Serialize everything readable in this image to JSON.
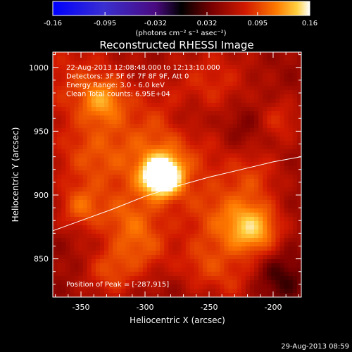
{
  "colorbar": {
    "ticks": [
      -0.16,
      -0.095,
      -0.032,
      0.032,
      0.095,
      0.16
    ],
    "tick_labels": [
      "-0.16",
      "-0.095",
      "-0.032",
      "0.032",
      "0.095",
      "0.16"
    ],
    "units_label": "(photons cm⁻² s⁻¹ asec⁻²)",
    "range": [
      -0.16,
      0.16
    ]
  },
  "chart_data": {
    "type": "heatmap",
    "title": "Reconstructed RHESSI Image",
    "xlabel": "Heliocentric X (arcsec)",
    "ylabel": "Heliocentric Y (arcsec)",
    "xlim": [
      -372,
      -178
    ],
    "ylim": [
      820,
      1012
    ],
    "x_ticks": [
      -350,
      -300,
      -250,
      -200
    ],
    "y_ticks": [
      850,
      900,
      950,
      1000
    ],
    "annotations": [
      "22-Aug-2013 12:08:48.000 to 12:13:10.000",
      "Detectors: 3F 5F 6F 7F 8F 9F, Att 0",
      "Energy Range: 3.0 - 6.0 keV",
      "Clean     Total counts: 6.95E+04"
    ],
    "peak_label": "Position of Peak = [-287,915]",
    "peak": [
      -287,
      915
    ],
    "limb_curve": {
      "x": [
        -372,
        -350,
        -325,
        -300,
        -275,
        -250,
        -225,
        -200,
        -178
      ],
      "y": [
        872,
        880,
        889,
        899,
        907,
        914,
        920,
        926,
        930
      ]
    },
    "sources": [
      {
        "x": -287,
        "y": 915,
        "sigma": 10,
        "amp": 0.16
      },
      {
        "x": -290,
        "y": 932,
        "sigma": 34,
        "amp": 0.05
      },
      {
        "x": -333,
        "y": 974,
        "sigma": 12,
        "amp": 0.05
      },
      {
        "x": -355,
        "y": 990,
        "sigma": 25,
        "amp": 0.03
      },
      {
        "x": -245,
        "y": 990,
        "sigma": 22,
        "amp": 0.025
      },
      {
        "x": -350,
        "y": 890,
        "sigma": 12,
        "amp": 0.045
      },
      {
        "x": -345,
        "y": 930,
        "sigma": 20,
        "amp": 0.03
      },
      {
        "x": -315,
        "y": 880,
        "sigma": 15,
        "amp": 0.035
      },
      {
        "x": -300,
        "y": 858,
        "sigma": 15,
        "amp": 0.035
      },
      {
        "x": -327,
        "y": 840,
        "sigma": 14,
        "amp": 0.04
      },
      {
        "x": -215,
        "y": 873,
        "sigma": 14,
        "amp": 0.075
      },
      {
        "x": -238,
        "y": 880,
        "sigma": 20,
        "amp": 0.04
      },
      {
        "x": -215,
        "y": 915,
        "sigma": 15,
        "amp": 0.03
      },
      {
        "x": -195,
        "y": 958,
        "sigma": 12,
        "amp": 0.03
      },
      {
        "x": -255,
        "y": 845,
        "sigma": 14,
        "amp": 0.03
      },
      {
        "x": -230,
        "y": 832,
        "sigma": 14,
        "amp": 0.025
      },
      {
        "x": -195,
        "y": 835,
        "sigma": 14,
        "amp": -0.03
      },
      {
        "x": -265,
        "y": 960,
        "sigma": 12,
        "amp": -0.025
      },
      {
        "x": -225,
        "y": 955,
        "sigma": 14,
        "amp": -0.02
      }
    ],
    "grid": false,
    "legend": "none"
  },
  "footer": {
    "date": "29-Aug-2013 08:59"
  }
}
